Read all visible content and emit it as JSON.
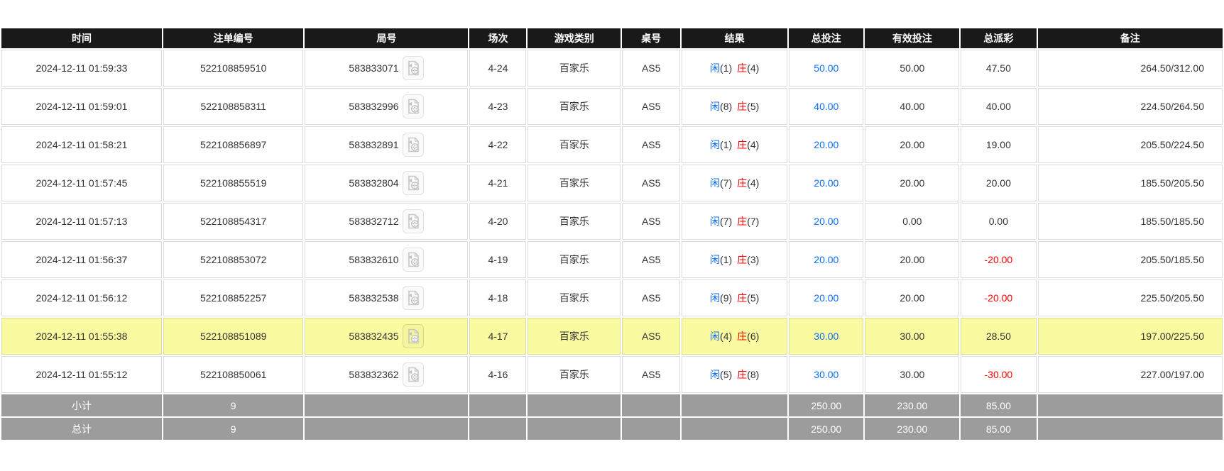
{
  "colors": {
    "header_bg": "#191919",
    "header_text": "#ffffff",
    "row_bg": "#ffffff",
    "highlight_row_bg": "#fafaa0",
    "summary_bg": "#9c9c9c",
    "cell_border": "#dcdcdc",
    "accent_blue": "#0a6cff",
    "accent_red": "#ff0000",
    "text": "#333333"
  },
  "icons": {
    "round_video_icon": "video-replay"
  },
  "table": {
    "columns": [
      {
        "key": "time",
        "label": "时间"
      },
      {
        "key": "bet_no",
        "label": "注单编号"
      },
      {
        "key": "round_no",
        "label": "局号"
      },
      {
        "key": "session",
        "label": "场次"
      },
      {
        "key": "game_type",
        "label": "游戏类别"
      },
      {
        "key": "table_no",
        "label": "桌号"
      },
      {
        "key": "result",
        "label": "结果"
      },
      {
        "key": "total_bet",
        "label": "总投注"
      },
      {
        "key": "valid_bet",
        "label": "有效投注"
      },
      {
        "key": "total_payout",
        "label": "总派彩"
      },
      {
        "key": "remark",
        "label": "备注"
      }
    ],
    "rows": [
      {
        "time": "2024-12-11 01:59:33",
        "bet_no": "522108859510",
        "round_no": "583833071",
        "session": "4-24",
        "game_type": "百家乐",
        "table_no": "AS5",
        "result": {
          "player_label": "闲",
          "player_points": "(1)",
          "banker_label": "庄",
          "banker_points": "(4)"
        },
        "total_bet": "50.00",
        "valid_bet": "50.00",
        "total_payout": "47.50",
        "remark": "264.50/312.00",
        "highlighted": false
      },
      {
        "time": "2024-12-11 01:59:01",
        "bet_no": "522108858311",
        "round_no": "583832996",
        "session": "4-23",
        "game_type": "百家乐",
        "table_no": "AS5",
        "result": {
          "player_label": "闲",
          "player_points": "(8)",
          "banker_label": "庄",
          "banker_points": "(5)"
        },
        "total_bet": "40.00",
        "valid_bet": "40.00",
        "total_payout": "40.00",
        "remark": "224.50/264.50",
        "highlighted": false
      },
      {
        "time": "2024-12-11 01:58:21",
        "bet_no": "522108856897",
        "round_no": "583832891",
        "session": "4-22",
        "game_type": "百家乐",
        "table_no": "AS5",
        "result": {
          "player_label": "闲",
          "player_points": "(1)",
          "banker_label": "庄",
          "banker_points": "(4)"
        },
        "total_bet": "20.00",
        "valid_bet": "20.00",
        "total_payout": "19.00",
        "remark": "205.50/224.50",
        "highlighted": false
      },
      {
        "time": "2024-12-11 01:57:45",
        "bet_no": "522108855519",
        "round_no": "583832804",
        "session": "4-21",
        "game_type": "百家乐",
        "table_no": "AS5",
        "result": {
          "player_label": "闲",
          "player_points": "(7)",
          "banker_label": "庄",
          "banker_points": "(4)"
        },
        "total_bet": "20.00",
        "valid_bet": "20.00",
        "total_payout": "20.00",
        "remark": "185.50/205.50",
        "highlighted": false
      },
      {
        "time": "2024-12-11 01:57:13",
        "bet_no": "522108854317",
        "round_no": "583832712",
        "session": "4-20",
        "game_type": "百家乐",
        "table_no": "AS5",
        "result": {
          "player_label": "闲",
          "player_points": "(7)",
          "banker_label": "庄",
          "banker_points": "(7)"
        },
        "total_bet": "20.00",
        "valid_bet": "0.00",
        "total_payout": "0.00",
        "remark": "185.50/185.50",
        "highlighted": false
      },
      {
        "time": "2024-12-11 01:56:37",
        "bet_no": "522108853072",
        "round_no": "583832610",
        "session": "4-19",
        "game_type": "百家乐",
        "table_no": "AS5",
        "result": {
          "player_label": "闲",
          "player_points": "(1)",
          "banker_label": "庄",
          "banker_points": "(3)"
        },
        "total_bet": "20.00",
        "valid_bet": "20.00",
        "total_payout": "-20.00",
        "remark": "205.50/185.50",
        "highlighted": false
      },
      {
        "time": "2024-12-11 01:56:12",
        "bet_no": "522108852257",
        "round_no": "583832538",
        "session": "4-18",
        "game_type": "百家乐",
        "table_no": "AS5",
        "result": {
          "player_label": "闲",
          "player_points": "(9)",
          "banker_label": "庄",
          "banker_points": "(5)"
        },
        "total_bet": "20.00",
        "valid_bet": "20.00",
        "total_payout": "-20.00",
        "remark": "225.50/205.50",
        "highlighted": false
      },
      {
        "time": "2024-12-11 01:55:38",
        "bet_no": "522108851089",
        "round_no": "583832435",
        "session": "4-17",
        "game_type": "百家乐",
        "table_no": "AS5",
        "result": {
          "player_label": "闲",
          "player_points": "(4)",
          "banker_label": "庄",
          "banker_points": "(6)"
        },
        "total_bet": "30.00",
        "valid_bet": "30.00",
        "total_payout": "28.50",
        "remark": "197.00/225.50",
        "highlighted": true
      },
      {
        "time": "2024-12-11 01:55:12",
        "bet_no": "522108850061",
        "round_no": "583832362",
        "session": "4-16",
        "game_type": "百家乐",
        "table_no": "AS5",
        "result": {
          "player_label": "闲",
          "player_points": "(5)",
          "banker_label": "庄",
          "banker_points": "(8)"
        },
        "total_bet": "30.00",
        "valid_bet": "30.00",
        "total_payout": "-30.00",
        "remark": "227.00/197.00",
        "highlighted": false
      }
    ],
    "summary_rows": [
      {
        "label": "小计",
        "count": "9",
        "total_bet": "250.00",
        "valid_bet": "230.00",
        "total_payout": "85.00"
      },
      {
        "label": "总计",
        "count": "9",
        "total_bet": "250.00",
        "valid_bet": "230.00",
        "total_payout": "85.00"
      }
    ]
  }
}
